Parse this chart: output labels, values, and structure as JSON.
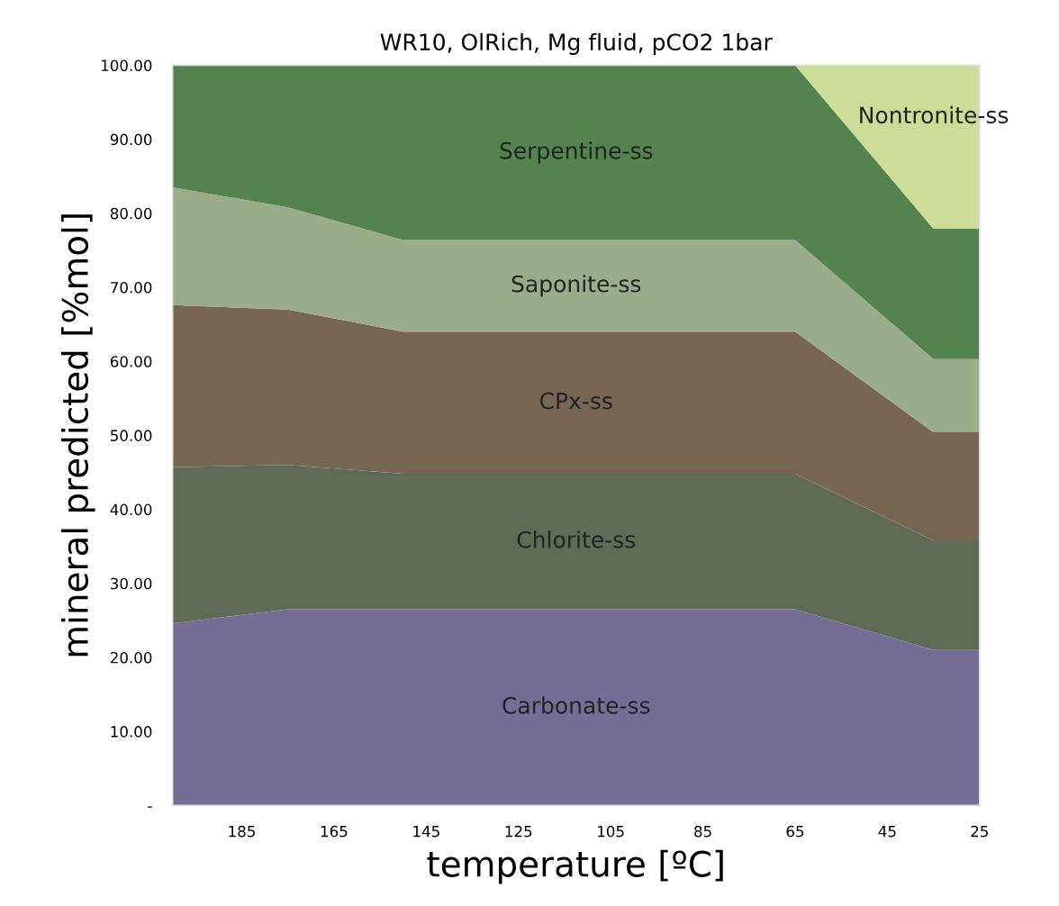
{
  "chart_data": {
    "type": "area",
    "stacked": true,
    "title": "WR10, OlRich, Mg fluid, pCO2 1bar",
    "xlabel": "temperature [ºC]",
    "ylabel": "mineral predicted [%mol]",
    "x": [
      200,
      175,
      150,
      65,
      35,
      25
    ],
    "xlim": [
      200,
      25
    ],
    "xticks": [
      185,
      165,
      145,
      125,
      105,
      85,
      65,
      45,
      25
    ],
    "ylim": [
      0,
      100
    ],
    "yticks": [
      {
        "value": 0,
        "label": "-"
      },
      {
        "value": 10,
        "label": "10.00"
      },
      {
        "value": 20,
        "label": "20.00"
      },
      {
        "value": 30,
        "label": "30.00"
      },
      {
        "value": 40,
        "label": "40.00"
      },
      {
        "value": 50,
        "label": "50.00"
      },
      {
        "value": 60,
        "label": "60.00"
      },
      {
        "value": 70,
        "label": "70.00"
      },
      {
        "value": 80,
        "label": "80.00"
      },
      {
        "value": 90,
        "label": "90.00"
      },
      {
        "value": 100,
        "label": "100.00"
      }
    ],
    "grid": false,
    "legend": false,
    "series": [
      {
        "name": "Carbonate-ss",
        "color": "#746e96",
        "values": [
          24.6,
          26.5,
          26.5,
          26.5,
          21.0,
          21.0
        ]
      },
      {
        "name": "Chlorite-ss",
        "color": "#5f6b55",
        "values": [
          21.1,
          19.5,
          18.3,
          18.3,
          14.8,
          14.8
        ]
      },
      {
        "name": "CPx-ss",
        "color": "#786652",
        "values": [
          21.9,
          21.0,
          19.2,
          19.2,
          14.6,
          14.6
        ]
      },
      {
        "name": "Saponite-ss",
        "color": "#9aad8a",
        "values": [
          15.9,
          13.8,
          12.4,
          12.4,
          9.9,
          9.9
        ]
      },
      {
        "name": "Serpentine-ss",
        "color": "#548350",
        "values": [
          16.5,
          19.2,
          23.6,
          23.6,
          17.6,
          17.6
        ]
      },
      {
        "name": "Nontronite-ss",
        "color": "#cddc96",
        "values": [
          0,
          0,
          0,
          0,
          22.1,
          22.1
        ]
      }
    ]
  }
}
